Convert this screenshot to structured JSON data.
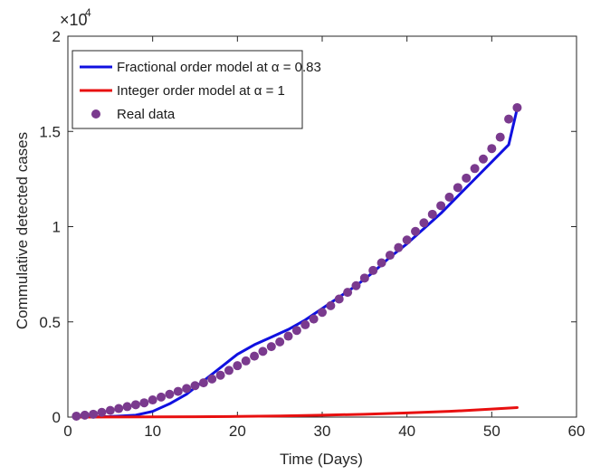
{
  "chart_data": {
    "type": "line",
    "xlabel": "Time (Days)",
    "ylabel": "Commulative detected cases",
    "xlim": [
      0,
      60
    ],
    "ylim": [
      0,
      20000
    ],
    "x_ticks": [
      0,
      10,
      20,
      30,
      40,
      50,
      60
    ],
    "y_ticks": [
      0,
      5000,
      10000,
      15000,
      20000
    ],
    "y_tick_labels": [
      "0",
      "0.5",
      "1",
      "1.5",
      "2"
    ],
    "y_exponent": {
      "base": "×10",
      "power": "4"
    },
    "grid": false,
    "legend_placement": "top-left",
    "series": [
      {
        "name": "Fractional order model at α = 0.83",
        "style": "line",
        "color": "#1010e0",
        "x": [
          1,
          5,
          8,
          10,
          12,
          14,
          16,
          18,
          20,
          22,
          24,
          26,
          28,
          30,
          32,
          34,
          36,
          38,
          40,
          42,
          44,
          46,
          48,
          50,
          52,
          53
        ],
        "y": [
          0,
          30,
          100,
          300,
          700,
          1200,
          1900,
          2600,
          3300,
          3800,
          4200,
          4600,
          5100,
          5700,
          6300,
          6900,
          7600,
          8400,
          9100,
          9900,
          10700,
          11600,
          12500,
          13400,
          14300,
          16200
        ]
      },
      {
        "name": "Integer order model at α  = 1",
        "style": "line",
        "color": "#e81010",
        "x": [
          1,
          5,
          10,
          15,
          20,
          25,
          30,
          35,
          40,
          45,
          50,
          53
        ],
        "y": [
          0,
          5,
          12,
          20,
          35,
          60,
          100,
          150,
          220,
          300,
          420,
          500
        ]
      },
      {
        "name": "Real data",
        "style": "markers",
        "color": "#7a3a8e",
        "x": [
          1,
          2,
          3,
          4,
          5,
          6,
          7,
          8,
          9,
          10,
          11,
          12,
          13,
          14,
          15,
          16,
          17,
          18,
          19,
          20,
          21,
          22,
          23,
          24,
          25,
          26,
          27,
          28,
          29,
          30,
          31,
          32,
          33,
          34,
          35,
          36,
          37,
          38,
          39,
          40,
          41,
          42,
          43,
          44,
          45,
          46,
          47,
          48,
          49,
          50,
          51,
          52,
          53
        ],
        "y": [
          50,
          100,
          150,
          250,
          350,
          450,
          550,
          650,
          750,
          900,
          1050,
          1200,
          1350,
          1500,
          1650,
          1800,
          2000,
          2200,
          2450,
          2700,
          2950,
          3200,
          3450,
          3700,
          3950,
          4250,
          4550,
          4850,
          5150,
          5500,
          5850,
          6200,
          6550,
          6900,
          7300,
          7700,
          8100,
          8500,
          8900,
          9300,
          9750,
          10200,
          10650,
          11100,
          11550,
          12050,
          12550,
          13050,
          13550,
          14100,
          14700,
          15650,
          16250
        ]
      }
    ]
  }
}
